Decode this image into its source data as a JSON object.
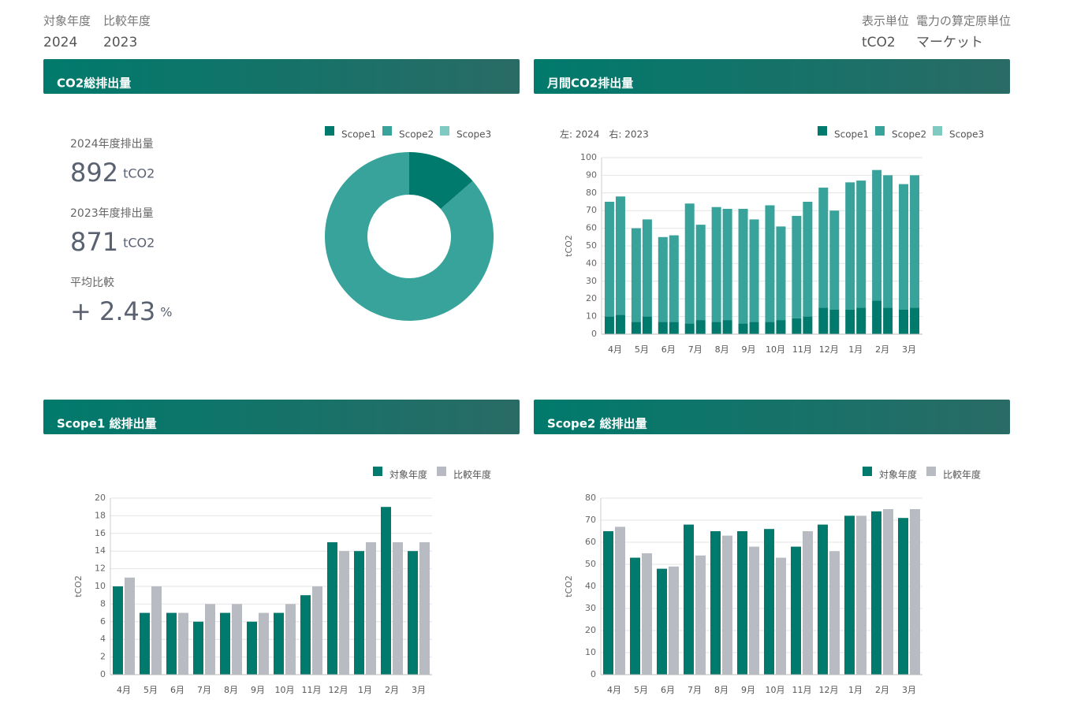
{
  "header": {
    "fields": [
      {
        "label": "対象年度",
        "value": "2024"
      },
      {
        "label": "比較年度",
        "value": "2023"
      },
      {
        "label": "表示単位",
        "value": "tCO2"
      },
      {
        "label": "電力の算定原単位",
        "value": "マーケット"
      }
    ]
  },
  "chart_data": [
    {
      "type": "pie",
      "donut": true,
      "title": "CO2総排出量",
      "stats": [
        {
          "label": "2024年度排出量",
          "value": "892",
          "unit": "tCO2"
        },
        {
          "label": "2023年度排出量",
          "value": "871",
          "unit": "tCO2"
        },
        {
          "label": "平均比較",
          "value": "+ 2.43",
          "unit": "%"
        }
      ],
      "categories": [
        "Scope1",
        "Scope2",
        "Scope3"
      ],
      "values": [
        121,
        771,
        0
      ],
      "colors": [
        "#007a6c",
        "#38a39a",
        "#7fcbc2"
      ],
      "legend": "top-right"
    },
    {
      "type": "bar",
      "stacked": true,
      "title": "月間CO2排出量",
      "note": "左: 2024　右: 2023",
      "ylabel": "tCO2",
      "categories": [
        "4月",
        "5月",
        "6月",
        "7月",
        "8月",
        "9月",
        "10月",
        "11月",
        "12月",
        "1月",
        "2月",
        "3月"
      ],
      "series": [
        {
          "name": "Scope1",
          "color": "#007a6c",
          "values": [
            10,
            7,
            7,
            6,
            7,
            6,
            7,
            9,
            15,
            14,
            19,
            14
          ],
          "compare_values": [
            11,
            10,
            7,
            8,
            8,
            7,
            8,
            10,
            14,
            15,
            15,
            15
          ]
        },
        {
          "name": "Scope2",
          "color": "#38a39a",
          "values": [
            65,
            53,
            48,
            68,
            65,
            65,
            66,
            58,
            68,
            72,
            74,
            71
          ],
          "compare_values": [
            67,
            55,
            49,
            54,
            63,
            58,
            53,
            65,
            56,
            72,
            75,
            75
          ]
        },
        {
          "name": "Scope3",
          "color": "#7fcbc2",
          "values": [
            0,
            0,
            0,
            0,
            0,
            0,
            0,
            0,
            0,
            0,
            0,
            0
          ],
          "compare_values": [
            0,
            0,
            0,
            0,
            0,
            0,
            0,
            0,
            0,
            0,
            0,
            0
          ]
        }
      ],
      "ylim": [
        0,
        100
      ],
      "yticks": [
        0,
        10,
        20,
        30,
        40,
        50,
        60,
        70,
        80,
        90,
        100
      ],
      "grid": true,
      "legend": "top-right"
    },
    {
      "type": "bar",
      "stacked": false,
      "title": "Scope1 総排出量",
      "ylabel": "tCO2",
      "categories": [
        "4月",
        "5月",
        "6月",
        "7月",
        "8月",
        "9月",
        "10月",
        "11月",
        "12月",
        "1月",
        "2月",
        "3月"
      ],
      "series": [
        {
          "name": "対象年度",
          "color": "#007a6c",
          "values": [
            10,
            7,
            7,
            6,
            7,
            6,
            7,
            9,
            15,
            14,
            19,
            14
          ]
        },
        {
          "name": "比較年度",
          "color": "#b8bcc2",
          "values": [
            11,
            10,
            7,
            8,
            8,
            7,
            8,
            10,
            14,
            15,
            15,
            15
          ]
        }
      ],
      "ylim": [
        0,
        20
      ],
      "yticks": [
        0,
        2,
        4,
        6,
        8,
        10,
        12,
        14,
        16,
        18,
        20
      ],
      "grid": true,
      "legend": "top-right"
    },
    {
      "type": "bar",
      "stacked": false,
      "title": "Scope2 総排出量",
      "ylabel": "tCO2",
      "categories": [
        "4月",
        "5月",
        "6月",
        "7月",
        "8月",
        "9月",
        "10月",
        "11月",
        "12月",
        "1月",
        "2月",
        "3月"
      ],
      "series": [
        {
          "name": "対象年度",
          "color": "#007a6c",
          "values": [
            65,
            53,
            48,
            68,
            65,
            65,
            66,
            58,
            68,
            72,
            74,
            71
          ]
        },
        {
          "name": "比較年度",
          "color": "#b8bcc2",
          "values": [
            67,
            55,
            49,
            54,
            63,
            58,
            53,
            65,
            56,
            72,
            75,
            75
          ]
        }
      ],
      "ylim": [
        0,
        80
      ],
      "yticks": [
        0,
        10,
        20,
        30,
        40,
        50,
        60,
        70,
        80
      ],
      "grid": true,
      "legend": "top-right"
    }
  ]
}
